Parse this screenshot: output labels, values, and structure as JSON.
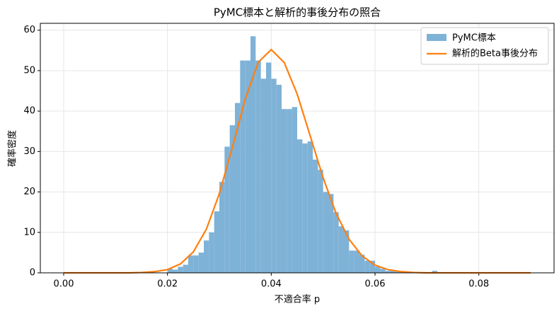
{
  "chart_data": {
    "type": "histogram",
    "title": "PyMC標本と解析的事後分布の照合",
    "xlabel": "不適合率 p",
    "ylabel": "確率密度",
    "name": "PyMC標本",
    "color": "#7fb2d7",
    "bins": [
      0.02,
      0.021,
      0.022,
      0.023,
      0.024,
      0.025,
      0.026,
      0.027,
      0.028,
      0.029,
      0.03,
      0.031,
      0.032,
      0.033,
      0.034,
      0.035,
      0.036,
      0.037,
      0.038,
      0.039,
      0.04,
      0.041,
      0.042,
      0.043,
      0.044,
      0.045,
      0.046,
      0.047,
      0.048,
      0.049,
      0.05,
      0.051,
      0.052,
      0.053,
      0.054,
      0.055,
      0.056,
      0.057,
      0.058,
      0.059,
      0.06,
      0.061,
      0.062,
      0.063,
      0.064,
      0.065,
      0.066,
      0.067,
      0.068,
      0.069,
      0.07,
      0.071,
      0.072
    ],
    "values": [
      1,
      0.8,
      1.5,
      2,
      4.3,
      4.3,
      5,
      8,
      10,
      15.2,
      22.5,
      31.2,
      36.5,
      42,
      52.5,
      52.5,
      58.5,
      52.5,
      48,
      52,
      48,
      46.5,
      40.5,
      40.5,
      41,
      33,
      32,
      32.5,
      28,
      25.5,
      20,
      19.5,
      15,
      11.5,
      10.5,
      5.5,
      5.5,
      4.5,
      3,
      3,
      1.5,
      1,
      0.5,
      0.5,
      0.3,
      0,
      0,
      0,
      0,
      0,
      0,
      0.5
    ],
    "lines": [
      {
        "type": "line",
        "name": "解析的Beta事後分布",
        "color": "#ff7f0e",
        "x": [
          0,
          0.0025,
          0.005,
          0.0075,
          0.01,
          0.0125,
          0.015,
          0.0175,
          0.02,
          0.0225,
          0.025,
          0.0275,
          0.03,
          0.0325,
          0.035,
          0.0375,
          0.04,
          0.0425,
          0.045,
          0.0475,
          0.05,
          0.0525,
          0.055,
          0.0575,
          0.06,
          0.0625,
          0.065,
          0.0675,
          0.07,
          0.0725,
          0.075,
          0.0775,
          0.08,
          0.0825,
          0.085,
          0.0875,
          0.09
        ],
        "values": [
          0,
          0,
          0,
          0,
          0,
          0,
          0.1,
          0.3,
          0.8,
          2.2,
          5.2,
          10.8,
          19.6,
          31,
          43,
          52.1,
          55.2,
          52,
          44.2,
          33.9,
          23.5,
          14.7,
          8.3,
          4.2,
          1.9,
          0.8,
          0.3,
          0.1,
          0,
          0,
          0,
          0,
          0,
          0,
          0,
          0,
          0
        ]
      }
    ],
    "xlim": [
      -0.0045,
      0.0945
    ],
    "xticks": [
      {
        "value": 0,
        "label": "0.00"
      },
      {
        "value": 0.02,
        "label": "0.02"
      },
      {
        "value": 0.04,
        "label": "0.04"
      },
      {
        "value": 0.06,
        "label": "0.06"
      },
      {
        "value": 0.08,
        "label": "0.08"
      }
    ],
    "ylim": [
      0,
      61.7
    ],
    "yticks": [
      0,
      10,
      20,
      30,
      40,
      50,
      60
    ],
    "grid": true,
    "legend": "upper right"
  }
}
